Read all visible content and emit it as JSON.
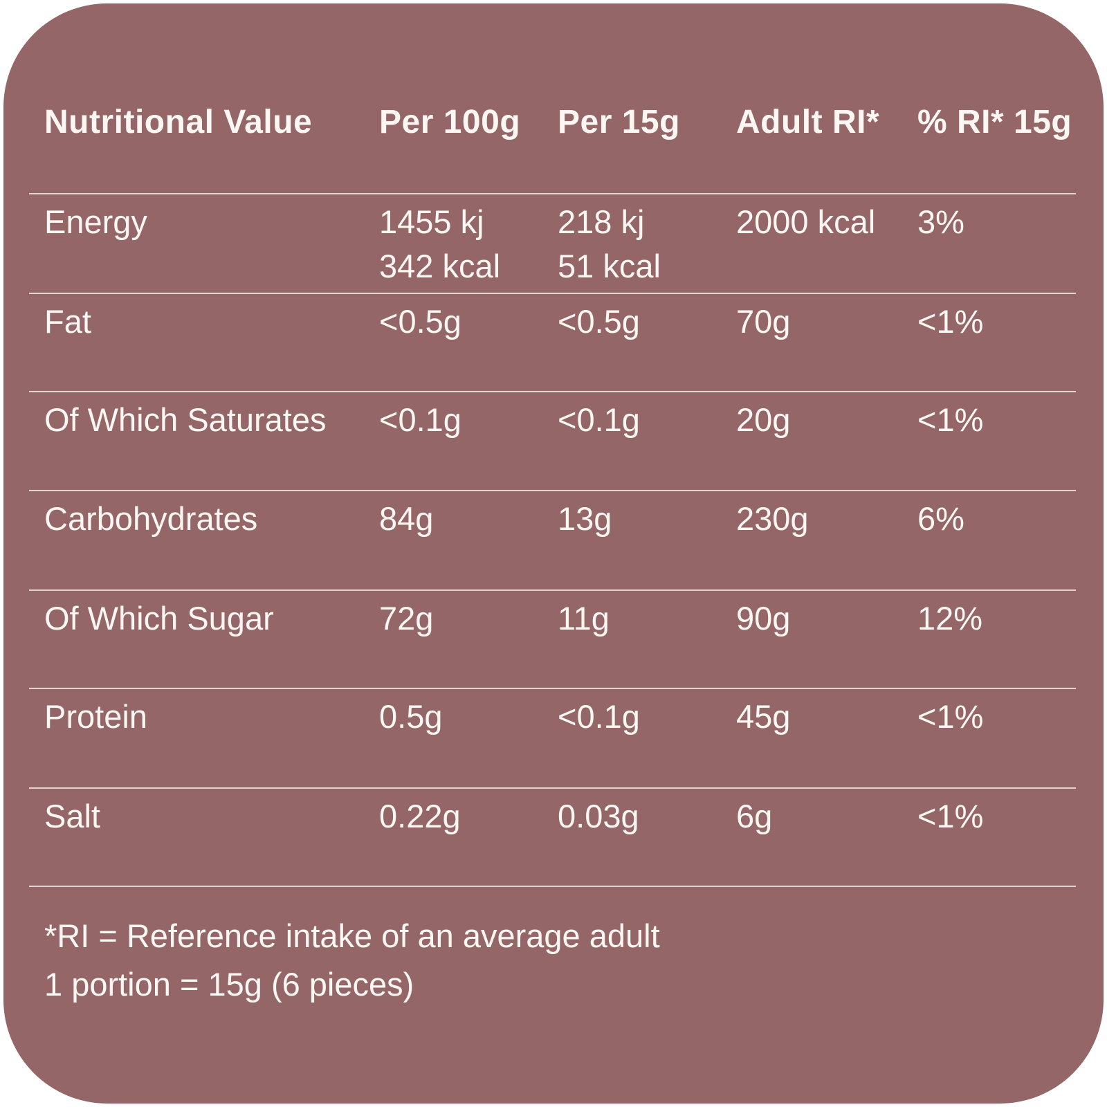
{
  "theme": {
    "page_bg": "#ffffff",
    "card_bg": "#956667",
    "text_color": "#fcf7f3",
    "divider_color": "#e5d4d0"
  },
  "table": {
    "header": [
      "Nutritional Value",
      "Per 100g",
      "Per 15g",
      "Adult RI*",
      "% RI* 15g"
    ],
    "rows": [
      {
        "cells": [
          [
            "Energy"
          ],
          [
            "1455 kj",
            "342 kcal"
          ],
          [
            "218 kj",
            "51 kcal"
          ],
          [
            "2000 kcal"
          ],
          [
            "3%"
          ]
        ]
      },
      {
        "cells": [
          [
            "Fat"
          ],
          [
            "<0.5g"
          ],
          [
            "<0.5g"
          ],
          [
            "70g"
          ],
          [
            "<1%"
          ]
        ]
      },
      {
        "cells": [
          [
            "Of Which Saturates"
          ],
          [
            "<0.1g"
          ],
          [
            "<0.1g"
          ],
          [
            "20g"
          ],
          [
            "<1%"
          ]
        ]
      },
      {
        "cells": [
          [
            "Carbohydrates"
          ],
          [
            "84g"
          ],
          [
            "13g"
          ],
          [
            "230g"
          ],
          [
            "6%"
          ]
        ]
      },
      {
        "cells": [
          [
            "Of Which Sugar"
          ],
          [
            "72g"
          ],
          [
            "11g"
          ],
          [
            "90g"
          ],
          [
            "12%"
          ]
        ]
      },
      {
        "cells": [
          [
            "Protein"
          ],
          [
            "0.5g"
          ],
          [
            "<0.1g"
          ],
          [
            "45g"
          ],
          [
            "<1%"
          ]
        ]
      },
      {
        "cells": [
          [
            "Salt"
          ],
          [
            "0.22g"
          ],
          [
            "0.03g"
          ],
          [
            "6g"
          ],
          [
            "<1%"
          ]
        ]
      }
    ]
  },
  "footnotes": [
    "*RI = Reference intake of an average adult",
    "1 portion = 15g (6 pieces)"
  ]
}
